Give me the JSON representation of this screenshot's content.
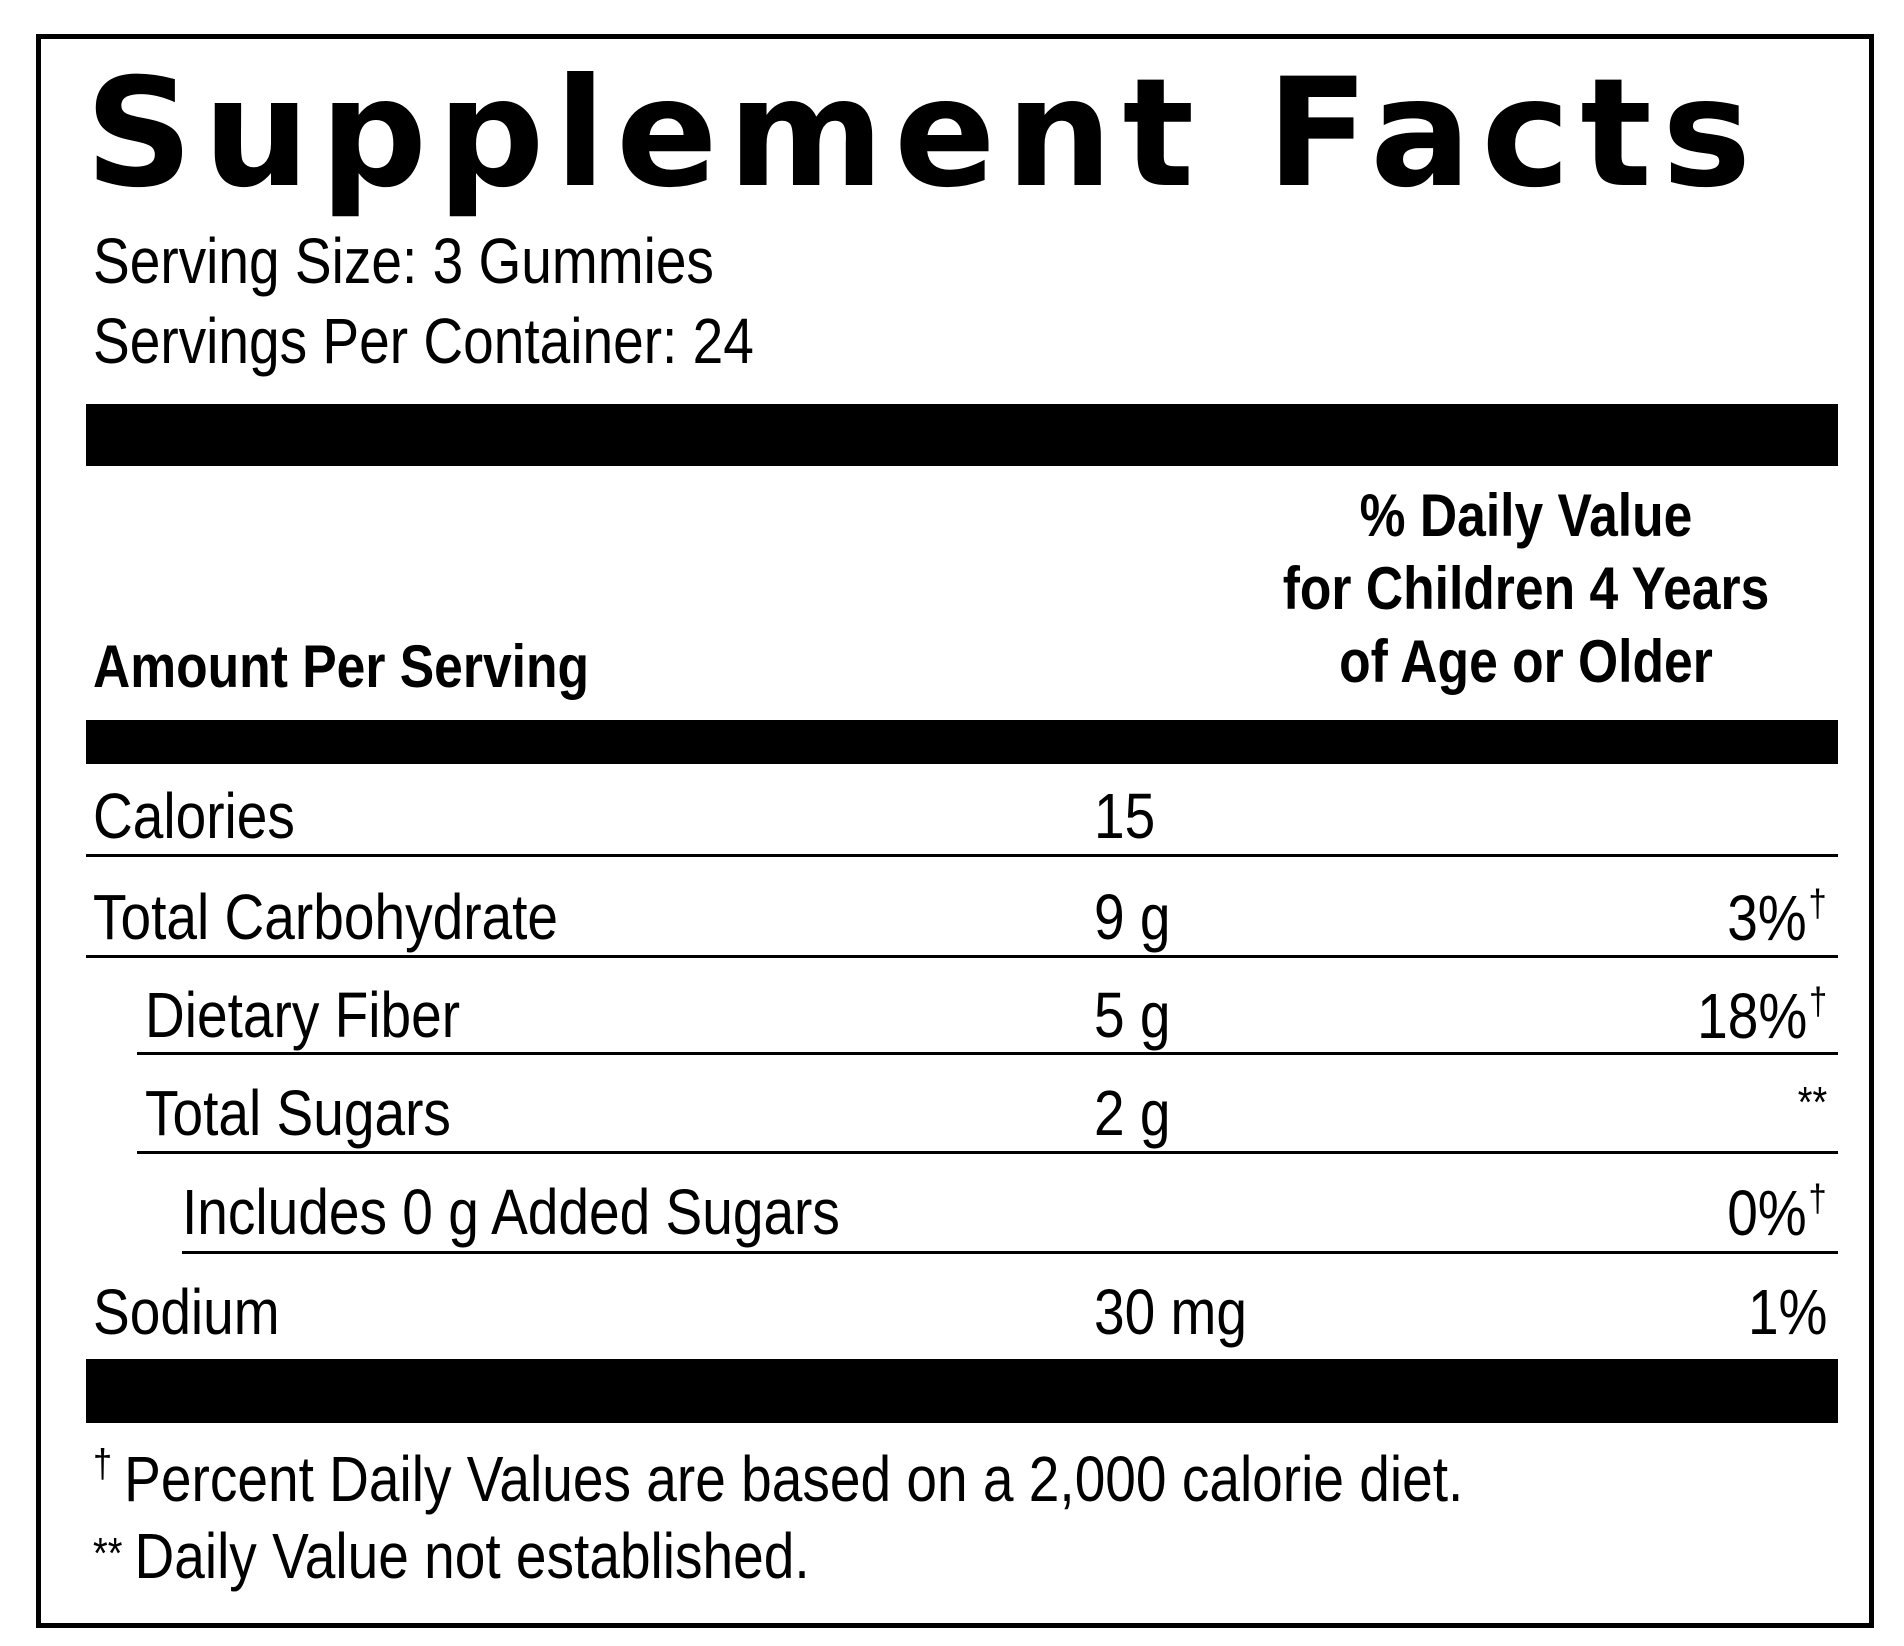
{
  "label": {
    "title": "Supplement Facts",
    "serving_size": "Serving Size: 3 Gummies",
    "servings_per_container": "Servings Per Container: 24",
    "header_left": "Amount Per Serving",
    "header_right": [
      "% Daily Value",
      "for Children 4 Years",
      "of Age or Older"
    ]
  },
  "rows": [
    {
      "name": "Calories",
      "amount": "15",
      "dv": "",
      "mark": ""
    },
    {
      "name": "Total Carbohydrate",
      "amount": "9 g",
      "dv": "3%",
      "mark": "†"
    },
    {
      "name": "Dietary Fiber",
      "amount": "5 g",
      "dv": "18%",
      "mark": "†"
    },
    {
      "name": "Total Sugars",
      "amount": "2 g",
      "dv": "**",
      "mark": ""
    },
    {
      "name": "Includes 0 g Added Sugars",
      "amount": "",
      "dv": "0%",
      "mark": "†"
    },
    {
      "name": "Sodium",
      "amount": "30 mg",
      "dv": "1%",
      "mark": ""
    }
  ],
  "footnotes": [
    {
      "mark": "†",
      "text": "Percent Daily Values are based on a 2,000 calorie diet."
    },
    {
      "mark": "**",
      "text": "Daily Value not established."
    }
  ]
}
